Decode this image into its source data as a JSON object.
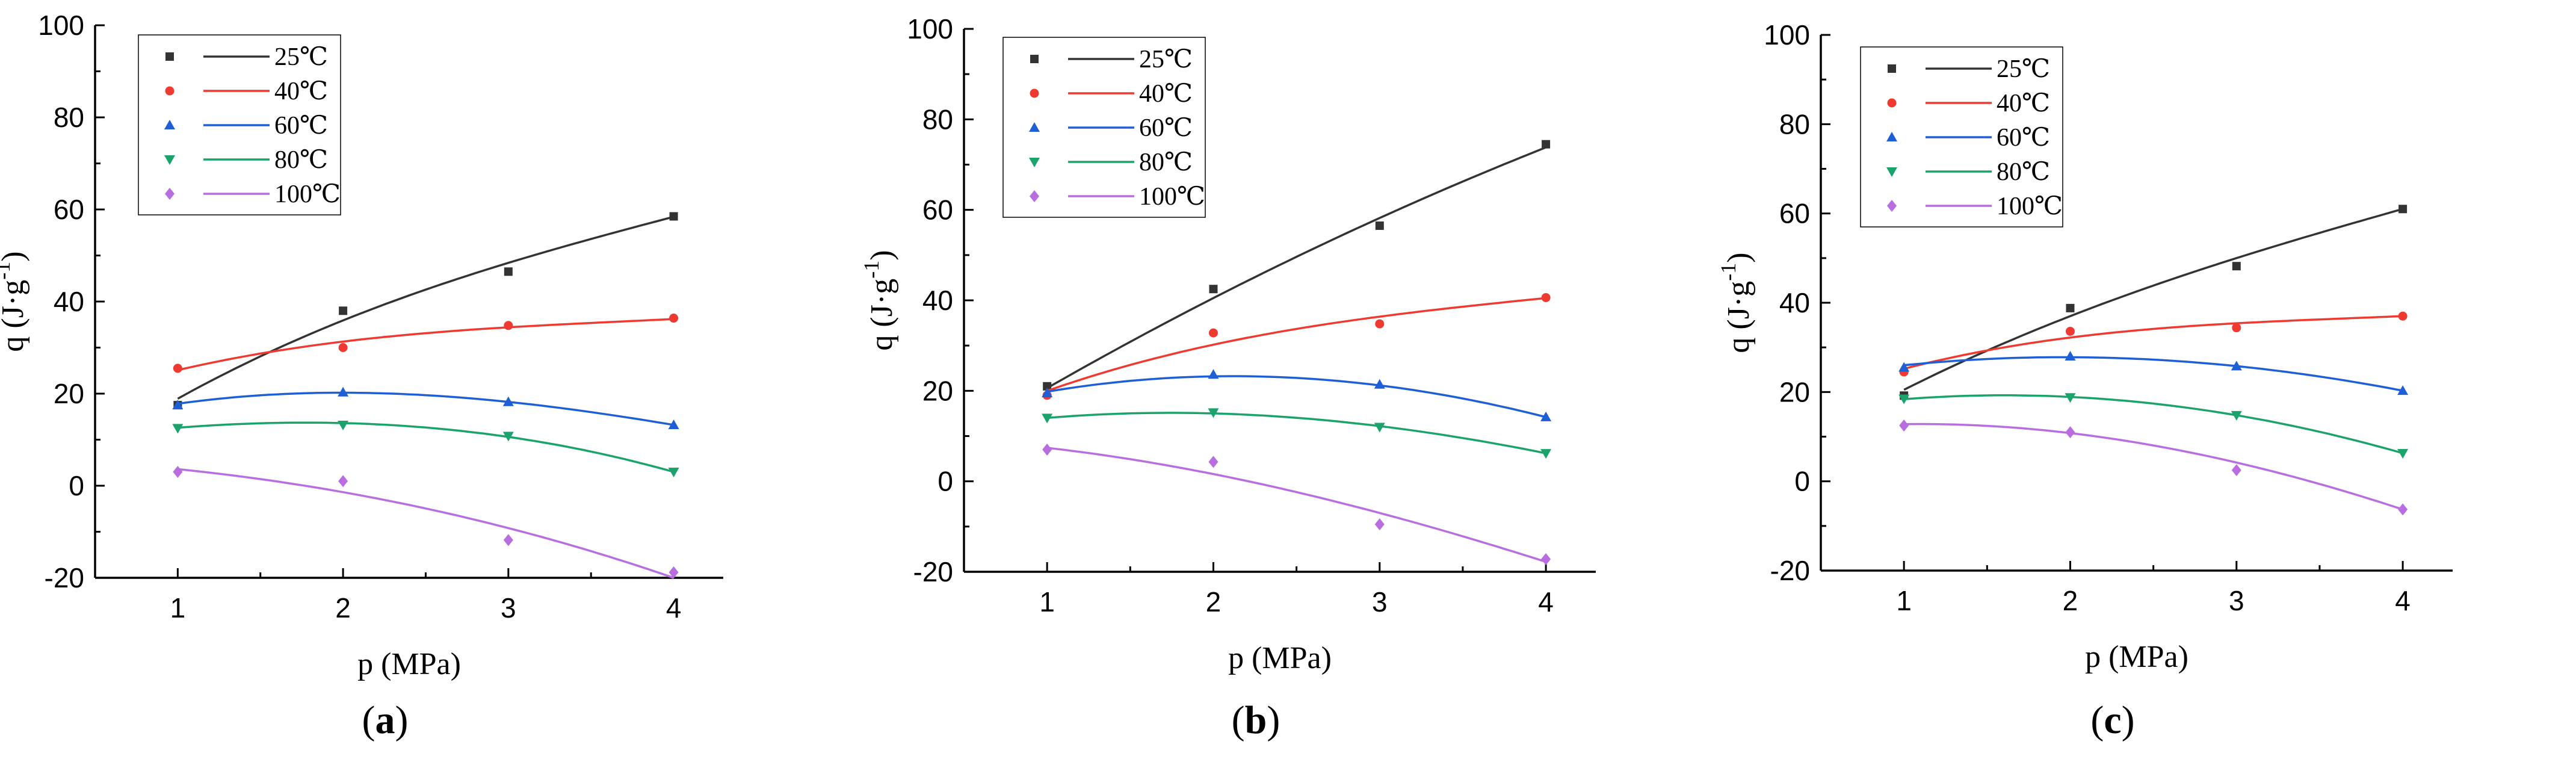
{
  "chart_data": [
    {
      "type": "scatter",
      "panel_label": "a",
      "xlabel": "p (MPa)",
      "ylabel_base": "q (J·g",
      "ylabel_sup": "-1",
      "ylabel_end": ")",
      "xlim": [
        0.5,
        4.3
      ],
      "ylim": [
        -20,
        100
      ],
      "x_ticks": [
        1,
        2,
        3,
        4
      ],
      "y_ticks": [
        -20,
        0,
        20,
        40,
        60,
        80,
        100
      ],
      "legend_position": "top-left",
      "series": [
        {
          "name": "25℃",
          "color": "#333333",
          "marker": "square",
          "x": [
            1,
            2,
            3,
            4
          ],
          "y": [
            17.5,
            38,
            46.5,
            58.5
          ],
          "fit": [
            18.9,
            35.9,
            48.4,
            58.4
          ]
        },
        {
          "name": "40℃",
          "color": "#ee3a30",
          "marker": "circle",
          "x": [
            1,
            2,
            3,
            4
          ],
          "y": [
            25.5,
            30,
            34.8,
            36.4
          ],
          "fit": [
            25.1,
            31.3,
            34.4,
            36.2
          ]
        },
        {
          "name": "60℃",
          "color": "#1e5fd6",
          "marker": "triangle-up",
          "x": [
            1,
            2,
            3,
            4
          ],
          "y": [
            17.5,
            20.3,
            18.2,
            13.2
          ],
          "fit": [
            17.8,
            20.2,
            18.2,
            13.2
          ]
        },
        {
          "name": "80℃",
          "color": "#1aa36a",
          "marker": "triangle-down",
          "x": [
            1,
            2,
            3,
            4
          ],
          "y": [
            12.5,
            13.2,
            10.8,
            3
          ],
          "fit": [
            12.6,
            13.6,
            10.6,
            3.0
          ]
        },
        {
          "name": "100℃",
          "color": "#b86ee0",
          "marker": "diamond",
          "x": [
            1,
            2,
            3,
            4
          ],
          "y": [
            3,
            1,
            -11.8,
            -18.8
          ],
          "fit": [
            3.6,
            -1.4,
            -9.2,
            -20.0
          ]
        }
      ]
    },
    {
      "type": "scatter",
      "panel_label": "b",
      "xlabel": "p (MPa)",
      "ylabel_base": "q (J·g",
      "ylabel_sup": "-1",
      "ylabel_end": ")",
      "xlim": [
        0.5,
        4.3
      ],
      "ylim": [
        -20,
        100
      ],
      "x_ticks": [
        1,
        2,
        3,
        4
      ],
      "y_ticks": [
        -20,
        0,
        20,
        40,
        60,
        80,
        100
      ],
      "legend_position": "top-left",
      "series": [
        {
          "name": "25℃",
          "color": "#333333",
          "marker": "square",
          "x": [
            1,
            2,
            3,
            4
          ],
          "y": [
            21,
            42.5,
            56.5,
            74.5
          ],
          "fit": [
            20.6,
            40.5,
            58.2,
            73.8
          ]
        },
        {
          "name": "40℃",
          "color": "#ee3a30",
          "marker": "circle",
          "x": [
            1,
            2,
            3,
            4
          ],
          "y": [
            19,
            32.8,
            34.8,
            40.6
          ],
          "fit": [
            20.0,
            30.2,
            36.4,
            40.5
          ]
        },
        {
          "name": "60℃",
          "color": "#1e5fd6",
          "marker": "triangle-up",
          "x": [
            1,
            2,
            3,
            4
          ],
          "y": [
            19.5,
            23.6,
            21.4,
            14.2
          ],
          "fit": [
            19.8,
            23.2,
            21.2,
            14.2
          ]
        },
        {
          "name": "80℃",
          "color": "#1aa36a",
          "marker": "triangle-down",
          "x": [
            1,
            2,
            3,
            4
          ],
          "y": [
            14,
            15.2,
            12,
            6.2
          ],
          "fit": [
            14.0,
            15.0,
            12.2,
            6.2
          ]
        },
        {
          "name": "100℃",
          "color": "#b86ee0",
          "marker": "diamond",
          "x": [
            1,
            2,
            3,
            4
          ],
          "y": [
            7,
            4.3,
            -9.5,
            -17.2
          ],
          "fit": [
            7.4,
            1.6,
            -7.0,
            -17.8
          ]
        }
      ]
    },
    {
      "type": "scatter",
      "panel_label": "c",
      "xlabel": "p (MPa)",
      "ylabel_base": "q (J·g",
      "ylabel_sup": "-1",
      "ylabel_end": ")",
      "xlim": [
        0.5,
        4.3
      ],
      "ylim": [
        -20,
        100
      ],
      "x_ticks": [
        1,
        2,
        3,
        4
      ],
      "y_ticks": [
        -20,
        0,
        20,
        40,
        60,
        80,
        100
      ],
      "legend_position": "top-left",
      "series": [
        {
          "name": "25℃",
          "color": "#333333",
          "marker": "square",
          "x": [
            1,
            2,
            3,
            4
          ],
          "y": [
            19.2,
            38.8,
            48.2,
            61
          ],
          "fit": [
            20.5,
            37.0,
            50.0,
            61.0
          ]
        },
        {
          "name": "40℃",
          "color": "#ee3a30",
          "marker": "circle",
          "x": [
            1,
            2,
            3,
            4
          ],
          "y": [
            24.5,
            33.6,
            34.4,
            37
          ],
          "fit": [
            25.2,
            32.2,
            35.4,
            37.0
          ]
        },
        {
          "name": "60℃",
          "color": "#1e5fd6",
          "marker": "triangle-up",
          "x": [
            1,
            2,
            3,
            4
          ],
          "y": [
            25.5,
            28,
            25.8,
            20.3
          ],
          "fit": [
            26.0,
            27.8,
            25.8,
            20.3
          ]
        },
        {
          "name": "80℃",
          "color": "#1aa36a",
          "marker": "triangle-down",
          "x": [
            1,
            2,
            3,
            4
          ],
          "y": [
            18.5,
            18.8,
            14.8,
            6.3
          ],
          "fit": [
            18.4,
            18.9,
            14.8,
            6.3
          ]
        },
        {
          "name": "100℃",
          "color": "#b86ee0",
          "marker": "diamond",
          "x": [
            1,
            2,
            3,
            4
          ],
          "y": [
            12.5,
            11,
            2.5,
            -6.3
          ],
          "fit": [
            12.8,
            10.8,
            4.2,
            -6.3
          ]
        }
      ]
    }
  ]
}
